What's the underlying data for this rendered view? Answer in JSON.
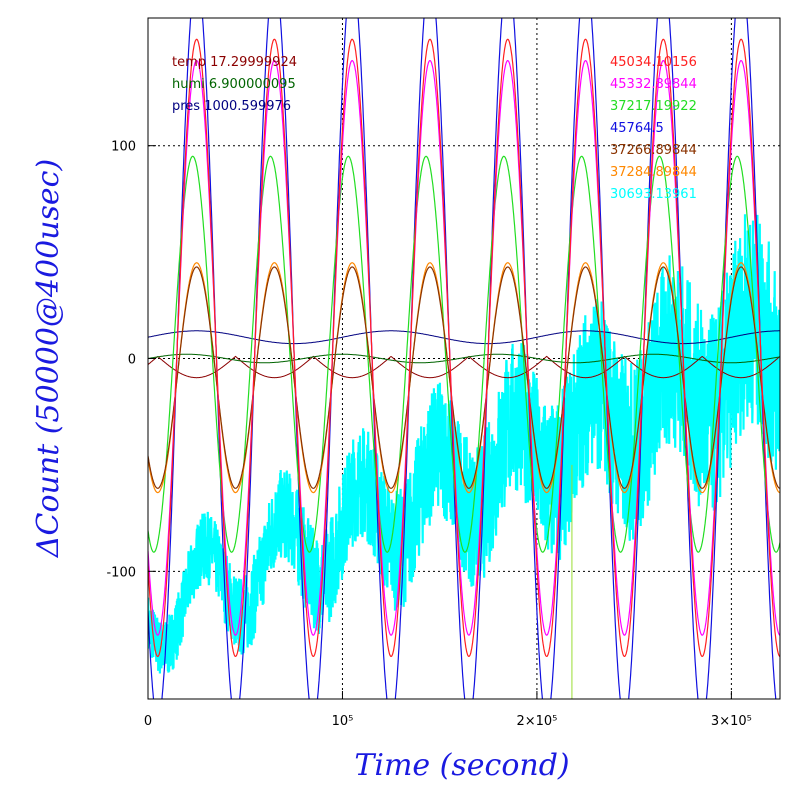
{
  "chart_data": {
    "type": "line",
    "xlabel": "Time (second)",
    "ylabel": "ΔCount (50000@400usec)",
    "xlim": [
      0,
      325000
    ],
    "ylim": [
      -160,
      160
    ],
    "x_ticks": [
      {
        "value": 0,
        "label": "0"
      },
      {
        "value": 100000,
        "label": "10⁵"
      },
      {
        "value": 200000,
        "label": "2×10⁵"
      },
      {
        "value": 300000,
        "label": "3×10⁵"
      }
    ],
    "y_ticks": [
      {
        "value": 100,
        "label": "100"
      },
      {
        "value": 0,
        "label": "0"
      },
      {
        "value": -100,
        "label": "-100"
      }
    ],
    "grid": true,
    "grid_style": "dotted",
    "oscillation_period": 40000,
    "first_peak_time": 25000,
    "series": [
      {
        "name": "45034.10156",
        "color": "#ff2020",
        "amplitude": 145,
        "offset": 5,
        "phase_shift": 0
      },
      {
        "name": "45332.89844",
        "color": "#ff00ff",
        "amplitude": 135,
        "offset": 5,
        "phase_shift": 0
      },
      {
        "name": "37217.19922",
        "color": "#22dd22",
        "amplitude": 93,
        "offset": 2,
        "phase_shift": -2000
      },
      {
        "name": "45764.5",
        "color": "#1010e0",
        "amplitude": 175,
        "offset": 5,
        "phase_shift": 0
      },
      {
        "name": "37266.89844",
        "color": "#8b3300",
        "amplitude": 52,
        "offset": -9,
        "phase_shift": 0
      },
      {
        "name": "37284.89844",
        "color": "#ff8800",
        "amplitude": 54,
        "offset": -9,
        "phase_shift": 0
      },
      {
        "name": "30693.13961",
        "color": "#00ffff",
        "amplitude": 20,
        "offset": -120,
        "slope": 60,
        "noise": 22,
        "phase_shift": 4000
      }
    ],
    "env_series": [
      {
        "name": "temp",
        "value": "17.29999924",
        "color": "#8b0000",
        "center": -3,
        "amplitude": 10,
        "period": 40000
      },
      {
        "name": "humi",
        "value": "6.900000095",
        "color": "#006400",
        "center": 0,
        "amplitude": 2,
        "period": 80000
      },
      {
        "name": "pres",
        "value": "1000.599976",
        "color": "#000080",
        "center": 10,
        "amplitude": 3,
        "period": 100000
      }
    ],
    "marker": {
      "x": 218000,
      "color": "#99dd33"
    }
  },
  "colors": {
    "title": "#1a1ae0",
    "axis": "#000000",
    "grid": "#000000"
  }
}
